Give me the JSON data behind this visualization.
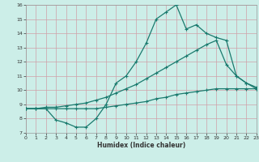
{
  "title": "",
  "xlabel": "Humidex (Indice chaleur)",
  "bg_color": "#cceee8",
  "line_color": "#1a7a6e",
  "grid_color": "#b0d8d0",
  "xmin": 0,
  "xmax": 23,
  "ymin": 7,
  "ymax": 16,
  "x": [
    0,
    1,
    2,
    3,
    4,
    5,
    6,
    7,
    8,
    9,
    10,
    11,
    12,
    13,
    14,
    15,
    16,
    17,
    18,
    19,
    20,
    21,
    22,
    23
  ],
  "y_jagged": [
    8.7,
    8.7,
    8.7,
    7.9,
    7.7,
    7.4,
    7.4,
    8.0,
    9.0,
    10.5,
    11.0,
    12.0,
    13.3,
    15.0,
    15.5,
    16.0,
    14.3,
    14.6,
    14.0,
    13.7,
    13.5,
    11.0,
    10.5,
    10.2
  ],
  "y_upper": [
    8.7,
    8.7,
    8.8,
    8.8,
    8.9,
    9.0,
    9.1,
    9.3,
    9.5,
    9.8,
    10.1,
    10.4,
    10.8,
    11.2,
    11.6,
    12.0,
    12.4,
    12.8,
    13.2,
    13.5,
    11.8,
    11.0,
    10.5,
    10.1
  ],
  "y_lower": [
    8.7,
    8.7,
    8.7,
    8.7,
    8.7,
    8.7,
    8.7,
    8.7,
    8.8,
    8.9,
    9.0,
    9.1,
    9.2,
    9.4,
    9.5,
    9.7,
    9.8,
    9.9,
    10.0,
    10.1,
    10.1,
    10.1,
    10.1,
    10.1
  ]
}
